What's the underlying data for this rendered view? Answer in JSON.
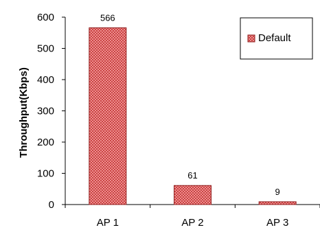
{
  "chart_data": {
    "type": "bar",
    "categories": [
      "AP 1",
      "AP 2",
      "AP 3"
    ],
    "series": [
      {
        "name": "Default",
        "values": [
          566,
          61,
          9
        ]
      }
    ],
    "data_labels": [
      "566",
      "61",
      "9"
    ],
    "y_ticks": [
      "0",
      "100",
      "200",
      "300",
      "400",
      "500",
      "600"
    ],
    "title": "",
    "xlabel": "",
    "ylabel": "Throughput(Kbps)",
    "ylim": [
      0,
      600
    ],
    "grid": false,
    "legend": {
      "placement": "top-right",
      "entries": [
        "Default"
      ]
    },
    "colors": {
      "bar_fill": "#ee8f8f",
      "bar_pattern": "#c94343",
      "bar_stroke": "#8f1d1d",
      "axis": "#000000"
    }
  }
}
